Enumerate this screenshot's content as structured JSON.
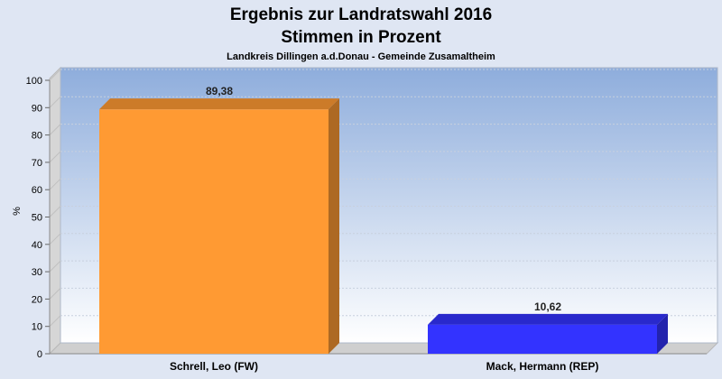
{
  "chart_data": {
    "type": "bar",
    "title": "Ergebnis zur Landratswahl 2016",
    "subtitle": "Stimmen in Prozent",
    "caption": "Landkreis Dillingen a.d.Donau - Gemeinde Zusamaltheim",
    "ylabel": "%",
    "xlabel": "",
    "ylim": [
      0,
      100
    ],
    "yticks": [
      "0",
      "10",
      "20",
      "30",
      "40",
      "50",
      "60",
      "70",
      "80",
      "90",
      "100"
    ],
    "grid": true,
    "categories": [
      "Schrell, Leo (FW)",
      "Mack, Hermann (REP)"
    ],
    "values": [
      89.38,
      10.62
    ],
    "value_labels": [
      "89,38",
      "10,62"
    ],
    "colors": [
      "#ff9a33",
      "#3333ff"
    ]
  }
}
